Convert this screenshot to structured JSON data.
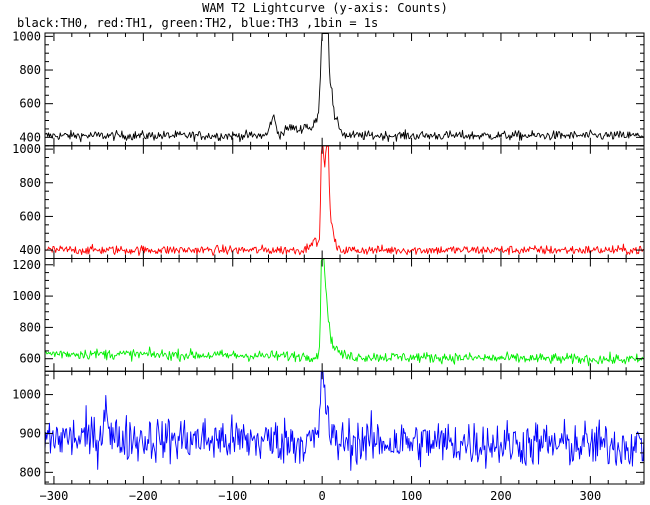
{
  "title": "WAM T2 Lightcurve (y-axis: Counts)",
  "subtitle": "black:TH0, red:TH1, green:TH2, blue:TH3 ,1bin = 1s",
  "chart_data": {
    "type": "line",
    "title": "WAM T2 Lightcurve (y-axis: Counts)",
    "subtitle": "black:TH0, red:TH1, green:TH2, blue:TH3 ,1bin = 1s",
    "xlim": [
      -310,
      360
    ],
    "x_ticks": [
      -300,
      -200,
      -100,
      0,
      100,
      200,
      300
    ],
    "x_step": 1,
    "panels": [
      {
        "name": "TH0",
        "color": "#000000",
        "ylim": [
          350,
          1020
        ],
        "y_ticks": [
          400,
          600,
          800,
          1000
        ],
        "baseline": 410,
        "noise": 14,
        "features": [
          {
            "x": -55,
            "amp": 110,
            "width": 3
          },
          {
            "x": -35,
            "amp": 50,
            "width": 6
          },
          {
            "x": -18,
            "amp": 60,
            "width": 5
          },
          {
            "x": -6,
            "amp": 90,
            "width": 3
          },
          {
            "x": 0,
            "amp": 520,
            "width": 2
          },
          {
            "x": 3,
            "amp": 420,
            "width": 2
          },
          {
            "x": 6,
            "amp": 600,
            "width": 1.5
          },
          {
            "x": 10,
            "amp": 250,
            "width": 2
          },
          {
            "x": 16,
            "amp": 80,
            "width": 4
          }
        ]
      },
      {
        "name": "TH1",
        "color": "#ff0000",
        "ylim": [
          350,
          1020
        ],
        "y_ticks": [
          400,
          600,
          800,
          1000
        ],
        "baseline": 400,
        "noise": 14,
        "features": [
          {
            "x": -10,
            "amp": 60,
            "width": 4
          },
          {
            "x": 0,
            "amp": 620,
            "width": 1.5
          },
          {
            "x": 3,
            "amp": 300,
            "width": 2
          },
          {
            "x": 6,
            "amp": 620,
            "width": 1.5
          },
          {
            "x": 10,
            "amp": 150,
            "width": 3
          }
        ]
      },
      {
        "name": "TH2",
        "color": "#00ee00",
        "ylim": [
          520,
          1240
        ],
        "y_ticks": [
          600,
          800,
          1000,
          1200
        ],
        "baseline": 615,
        "slope": -0.06,
        "noise": 17,
        "features": [
          {
            "x": 0,
            "amp": 640,
            "width": 1.5
          },
          {
            "x": 3,
            "amp": 350,
            "width": 2
          },
          {
            "x": 6,
            "amp": 150,
            "width": 3
          },
          {
            "x": 12,
            "amp": 60,
            "width": 6
          }
        ]
      },
      {
        "name": "TH3",
        "color": "#0000ff",
        "ylim": [
          770,
          1060
        ],
        "y_ticks": [
          800,
          900,
          1000
        ],
        "baseline": 880,
        "slope": -0.03,
        "noise": 30,
        "features": [
          {
            "x": -242,
            "amp": 110,
            "width": 2
          },
          {
            "x": 0,
            "amp": 160,
            "width": 2
          },
          {
            "x": 4,
            "amp": 80,
            "width": 3
          }
        ]
      }
    ]
  }
}
